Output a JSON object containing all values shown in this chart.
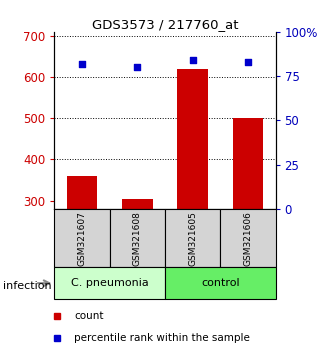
{
  "title": "GDS3573 / 217760_at",
  "samples": [
    "GSM321607",
    "GSM321608",
    "GSM321605",
    "GSM321606"
  ],
  "counts": [
    360,
    305,
    620,
    500
  ],
  "percentiles": [
    82,
    80,
    84,
    83
  ],
  "ylim_left": [
    280,
    710
  ],
  "ylim_right": [
    0,
    100
  ],
  "yticks_left": [
    300,
    400,
    500,
    600,
    700
  ],
  "yticks_right": [
    0,
    25,
    50,
    75,
    100
  ],
  "bar_color": "#cc0000",
  "scatter_color": "#0000cc",
  "groups": [
    {
      "label": "C. pneumonia",
      "indices": [
        0,
        1
      ],
      "color": "#ccffcc"
    },
    {
      "label": "control",
      "indices": [
        2,
        3
      ],
      "color": "#66ee66"
    }
  ],
  "infection_label": "infection",
  "legend_items": [
    {
      "color": "#cc0000",
      "marker": "s",
      "label": "count"
    },
    {
      "color": "#0000cc",
      "marker": "s",
      "label": "percentile rank within the sample"
    }
  ],
  "bar_width": 0.55,
  "left_axis_color": "#cc0000",
  "right_axis_color": "#0000bb"
}
